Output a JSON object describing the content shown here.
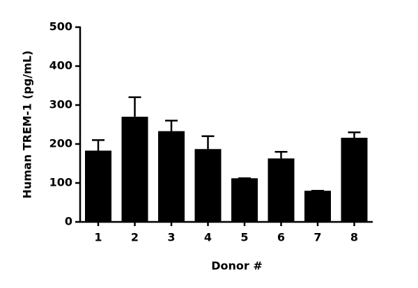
{
  "chart_data": {
    "type": "bar",
    "x_label": "Donor #",
    "y_label": "Human TREM-1 (pg/mL)",
    "categories": [
      "1",
      "2",
      "3",
      "4",
      "5",
      "6",
      "7",
      "8"
    ],
    "values": [
      183,
      270,
      233,
      187,
      112,
      163,
      80,
      216
    ],
    "errors": [
      27,
      50,
      27,
      33,
      0,
      17,
      0,
      14
    ],
    "color": "#000000",
    "ylim": [
      0,
      500
    ],
    "yticks": [
      0,
      100,
      200,
      300,
      400,
      500
    ],
    "grid": false
  }
}
